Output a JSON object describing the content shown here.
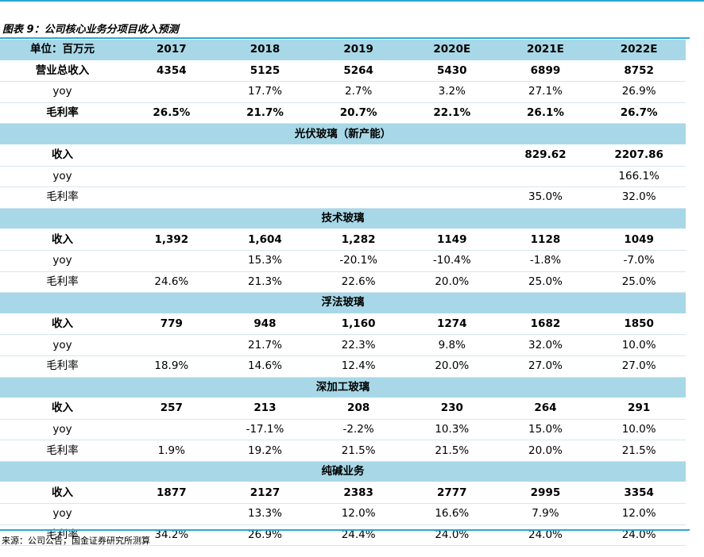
{
  "figure_title": "图表 9：公司核心业务分项目收入预测",
  "header": [
    "单位：百万元",
    "2017",
    "2018",
    "2019",
    "2020E",
    "2021E",
    "2022E"
  ],
  "summary_rows": [
    {
      "label": "营业总收入",
      "values": [
        "4354",
        "5125",
        "5264",
        "5430",
        "6899",
        "8752"
      ],
      "bold": true
    },
    {
      "label": "yoy",
      "values": [
        "",
        "17.7%",
        "2.7%",
        "3.2%",
        "27.1%",
        "26.9%"
      ],
      "bold": false
    },
    {
      "label": "毛利率",
      "values": [
        "26.5%",
        "21.7%",
        "20.7%",
        "22.1%",
        "26.1%",
        "26.7%"
      ],
      "bold": true
    }
  ],
  "sections": [
    {
      "title": "光伏玻璃（新产能）",
      "rows": [
        {
          "label": "收入",
          "values": [
            "",
            "",
            "",
            "",
            "829.62",
            "2207.86"
          ],
          "bold": true
        },
        {
          "label": "yoy",
          "values": [
            "",
            "",
            "",
            "",
            "",
            "166.1%"
          ],
          "bold": false
        },
        {
          "label": "毛利率",
          "values": [
            "",
            "",
            "",
            "",
            "35.0%",
            "32.0%"
          ],
          "bold": false
        }
      ]
    },
    {
      "title": "技术玻璃",
      "rows": [
        {
          "label": "收入",
          "values": [
            "1,392",
            "1,604",
            "1,282",
            "1149",
            "1128",
            "1049"
          ],
          "bold": true
        },
        {
          "label": "yoy",
          "values": [
            "",
            "15.3%",
            "-20.1%",
            "-10.4%",
            "-1.8%",
            "-7.0%"
          ],
          "bold": false
        },
        {
          "label": "毛利率",
          "values": [
            "24.6%",
            "21.3%",
            "22.6%",
            "20.0%",
            "25.0%",
            "25.0%"
          ],
          "bold": false
        }
      ]
    },
    {
      "title": "浮法玻璃",
      "rows": [
        {
          "label": "收入",
          "values": [
            "779",
            "948",
            "1,160",
            "1274",
            "1682",
            "1850"
          ],
          "bold": true
        },
        {
          "label": "yoy",
          "values": [
            "",
            "21.7%",
            "22.3%",
            "9.8%",
            "32.0%",
            "10.0%"
          ],
          "bold": false
        },
        {
          "label": "毛利率",
          "values": [
            "18.9%",
            "14.6%",
            "12.4%",
            "20.0%",
            "27.0%",
            "27.0%"
          ],
          "bold": false
        }
      ]
    },
    {
      "title": "深加工玻璃",
      "rows": [
        {
          "label": "收入",
          "values": [
            "257",
            "213",
            "208",
            "230",
            "264",
            "291"
          ],
          "bold": true
        },
        {
          "label": "yoy",
          "values": [
            "",
            "-17.1%",
            "-2.2%",
            "10.3%",
            "15.0%",
            "10.0%"
          ],
          "bold": false
        },
        {
          "label": "毛利率",
          "values": [
            "1.9%",
            "19.2%",
            "21.5%",
            "21.5%",
            "20.0%",
            "21.5%"
          ],
          "bold": false
        }
      ]
    },
    {
      "title": "纯碱业务",
      "rows": [
        {
          "label": "收入",
          "values": [
            "1877",
            "2127",
            "2383",
            "2777",
            "2995",
            "3354"
          ],
          "bold": true
        },
        {
          "label": "yoy",
          "values": [
            "",
            "13.3%",
            "12.0%",
            "16.6%",
            "7.9%",
            "12.0%"
          ],
          "bold": false
        },
        {
          "label": "毛利率",
          "values": [
            "34.2%",
            "26.9%",
            "24.4%",
            "24.0%",
            "24.0%",
            "24.0%"
          ],
          "bold": false
        }
      ]
    }
  ],
  "source": "来源：公司公告，国金证券研究所测算",
  "colors": {
    "accent_rule": "#29a9d4",
    "header_fill": "#a8d8e7"
  }
}
